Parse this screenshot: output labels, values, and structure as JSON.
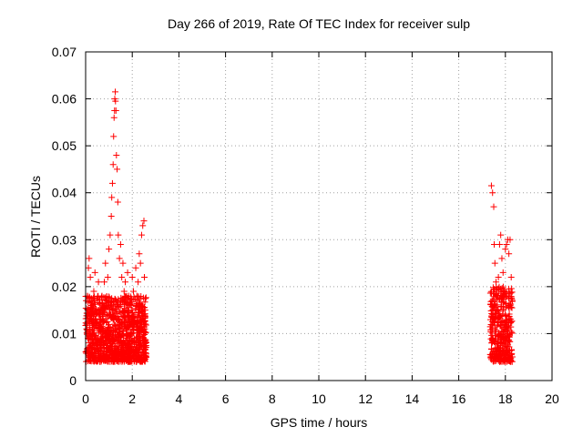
{
  "chart_data": {
    "type": "scatter",
    "title": "Day 266 of 2019, Rate Of TEC Index for receiver sulp",
    "xlabel": "GPS time / hours",
    "ylabel": "ROTI / TECUs",
    "xlim": [
      0,
      20
    ],
    "ylim": [
      0,
      0.07
    ],
    "xticks": [
      "0",
      "2",
      "4",
      "6",
      "8",
      "10",
      "12",
      "14",
      "16",
      "18",
      "20"
    ],
    "yticks": [
      "0",
      "0.01",
      "0.02",
      "0.03",
      "0.04",
      "0.05",
      "0.06",
      "0.07"
    ],
    "grid": true,
    "marker": "+",
    "series": [
      {
        "name": "ROTI",
        "color": "#ff0000",
        "points": [
          [
            0.05,
            0.012
          ],
          [
            0.08,
            0.018
          ],
          [
            0.1,
            0.009
          ],
          [
            0.12,
            0.024
          ],
          [
            0.15,
            0.026
          ],
          [
            0.18,
            0.014
          ],
          [
            0.2,
            0.022
          ],
          [
            0.22,
            0.007
          ],
          [
            0.25,
            0.016
          ],
          [
            0.3,
            0.011
          ],
          [
            0.35,
            0.019
          ],
          [
            0.4,
            0.023
          ],
          [
            0.45,
            0.008
          ],
          [
            0.5,
            0.015
          ],
          [
            0.55,
            0.021
          ],
          [
            0.6,
            0.012
          ],
          [
            0.65,
            0.009
          ],
          [
            0.7,
            0.018
          ],
          [
            0.75,
            0.014
          ],
          [
            0.8,
            0.021
          ],
          [
            0.85,
            0.025
          ],
          [
            0.9,
            0.017
          ],
          [
            0.95,
            0.022
          ],
          [
            1.0,
            0.028
          ],
          [
            1.05,
            0.031
          ],
          [
            1.1,
            0.035
          ],
          [
            1.12,
            0.039
          ],
          [
            1.15,
            0.042
          ],
          [
            1.18,
            0.046
          ],
          [
            1.2,
            0.052
          ],
          [
            1.22,
            0.056
          ],
          [
            1.24,
            0.0575
          ],
          [
            1.25,
            0.06
          ],
          [
            1.27,
            0.0615
          ],
          [
            1.28,
            0.0595
          ],
          [
            1.3,
            0.0575
          ],
          [
            1.32,
            0.048
          ],
          [
            1.35,
            0.045
          ],
          [
            1.38,
            0.038
          ],
          [
            1.4,
            0.031
          ],
          [
            1.45,
            0.026
          ],
          [
            1.5,
            0.029
          ],
          [
            1.55,
            0.022
          ],
          [
            1.6,
            0.025
          ],
          [
            1.65,
            0.019
          ],
          [
            1.7,
            0.021
          ],
          [
            1.75,
            0.015
          ],
          [
            1.8,
            0.023
          ],
          [
            1.85,
            0.018
          ],
          [
            1.9,
            0.012
          ],
          [
            1.95,
            0.016
          ],
          [
            2.0,
            0.022
          ],
          [
            2.05,
            0.019
          ],
          [
            2.1,
            0.014
          ],
          [
            2.15,
            0.024
          ],
          [
            2.2,
            0.018
          ],
          [
            2.25,
            0.021
          ],
          [
            2.3,
            0.027
          ],
          [
            2.35,
            0.025
          ],
          [
            2.4,
            0.031
          ],
          [
            2.45,
            0.033
          ],
          [
            2.5,
            0.034
          ],
          [
            2.52,
            0.022
          ],
          [
            2.55,
            0.015
          ],
          [
            17.4,
            0.0415
          ],
          [
            17.45,
            0.04
          ],
          [
            17.5,
            0.037
          ],
          [
            17.52,
            0.029
          ],
          [
            17.55,
            0.025
          ],
          [
            17.6,
            0.021
          ],
          [
            17.65,
            0.018
          ],
          [
            17.7,
            0.022
          ],
          [
            17.75,
            0.029
          ],
          [
            17.8,
            0.031
          ],
          [
            17.85,
            0.026
          ],
          [
            17.9,
            0.023
          ],
          [
            17.95,
            0.019
          ],
          [
            18.0,
            0.028
          ],
          [
            18.05,
            0.029
          ],
          [
            18.1,
            0.03
          ],
          [
            18.15,
            0.027
          ],
          [
            18.2,
            0.03
          ],
          [
            18.25,
            0.022
          ]
        ],
        "dense_bands": [
          {
            "x": [
              0.0,
              2.6
            ],
            "y": [
              0.004,
              0.018
            ]
          },
          {
            "x": [
              17.35,
              18.3
            ],
            "y": [
              0.004,
              0.02
            ]
          }
        ]
      }
    ]
  }
}
